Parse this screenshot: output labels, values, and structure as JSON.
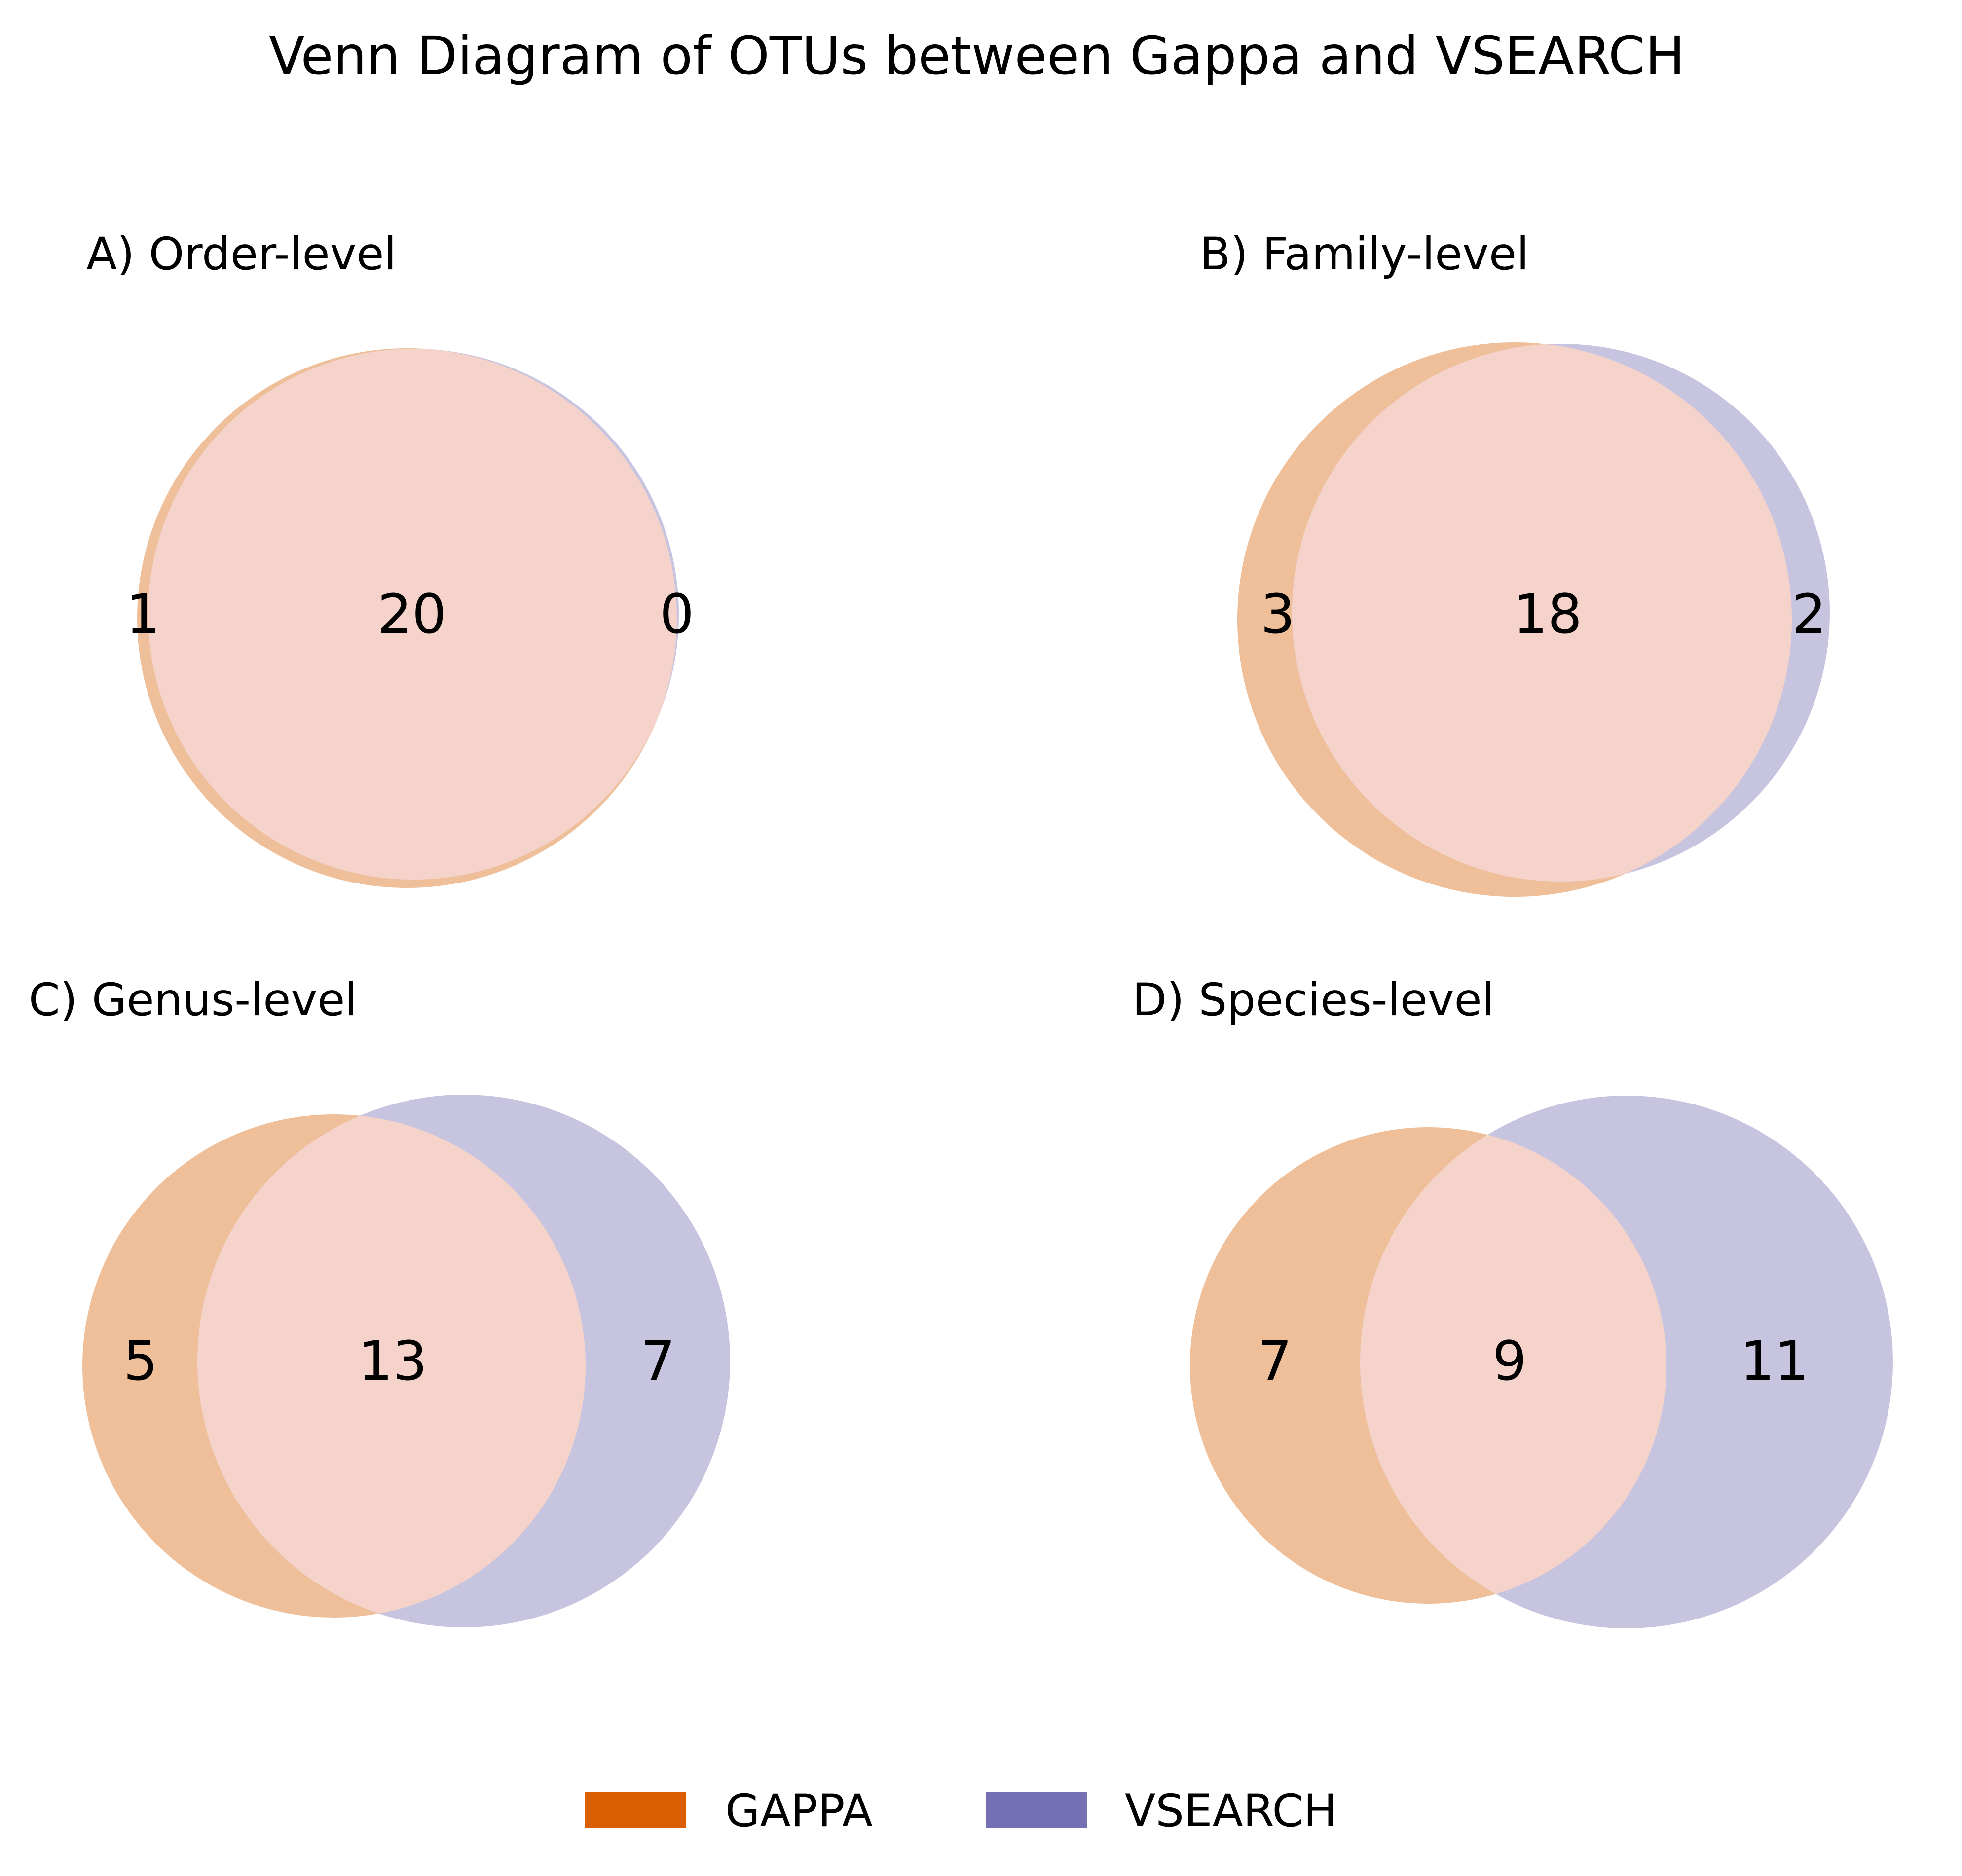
{
  "title": "Venn Diagram of OTUs between Gappa and VSEARCH",
  "colors": {
    "gappa_fill": "#EEBF99",
    "vsearch_fill": "#C7C4E0",
    "overlap_fill": "#F5D3CB",
    "gappa_legend": "#D95F02",
    "vsearch_legend": "#7570B3"
  },
  "legend": {
    "placement": "bottom-center",
    "items": [
      {
        "label": "GAPPA",
        "color": "#D95F02"
      },
      {
        "label": "VSEARCH",
        "color": "#7570B3"
      }
    ]
  },
  "chart_data": [
    {
      "type": "venn",
      "title": "A) Order-level",
      "sets": [
        "GAPPA",
        "VSEARCH"
      ],
      "gappa_only": "1",
      "shared": "20",
      "vsearch_only": "0"
    },
    {
      "type": "venn",
      "title": "B) Family-level",
      "sets": [
        "GAPPA",
        "VSEARCH"
      ],
      "gappa_only": "3",
      "shared": "18",
      "vsearch_only": "2"
    },
    {
      "type": "venn",
      "title": "C) Genus-level",
      "sets": [
        "GAPPA",
        "VSEARCH"
      ],
      "gappa_only": "5",
      "shared": "13",
      "vsearch_only": "7"
    },
    {
      "type": "venn",
      "title": "D) Species-level",
      "sets": [
        "GAPPA",
        "VSEARCH"
      ],
      "gappa_only": "7",
      "shared": "9",
      "vsearch_only": "11"
    }
  ]
}
